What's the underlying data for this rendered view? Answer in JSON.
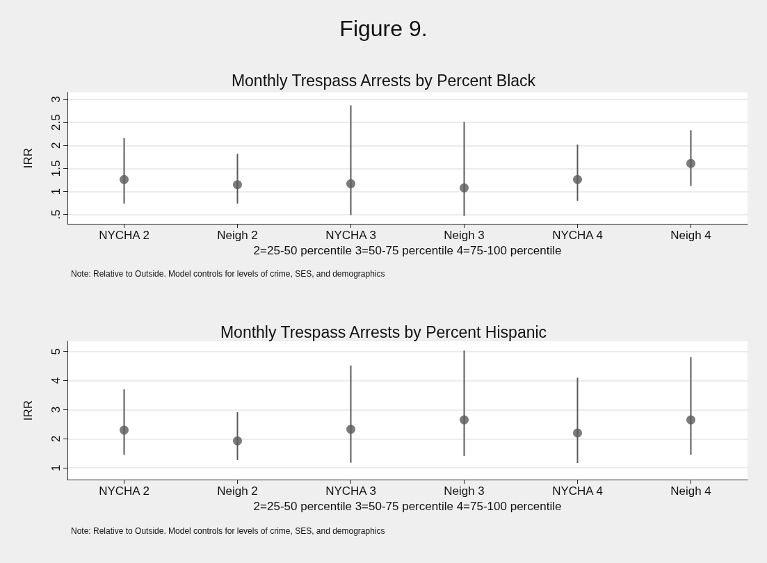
{
  "chart_data": [
    {
      "type": "scatter",
      "title": "Figure 9.",
      "subtitle": "Monthly Trespass Arrests by Percent Black",
      "ylabel": "IRR",
      "xlabel": "2=25-50 percentile 3=50-75 percentile 4=75-100 percentile",
      "categories": [
        "NYCHA 2",
        "Neigh 2",
        "NYCHA 3",
        "Neigh 3",
        "NYCHA 4",
        "Neigh 4"
      ],
      "series": [
        {
          "color": "#5a5a5a",
          "values": [
            1.26,
            1.15,
            1.17,
            1.08,
            1.26,
            1.61
          ],
          "errors": [
            [
              0.74,
              2.16
            ],
            [
              0.74,
              1.82
            ],
            [
              0.49,
              2.87
            ],
            [
              0.47,
              2.51
            ],
            [
              0.8,
              2.02
            ],
            [
              1.12,
              2.33
            ]
          ]
        }
      ],
      "ylim": [
        0.3,
        3.15
      ],
      "yticks": [
        {
          "value": 0.5,
          "label": ".5"
        },
        1,
        1.5,
        2,
        2.5,
        3
      ],
      "grid": "y",
      "marker": "circle",
      "annotations": [
        "Note: Relative to Outside. Model controls for levels of crime, SES, and demographics"
      ]
    },
    {
      "type": "scatter",
      "title": "Monthly Trespass Arrests by Percent Hispanic",
      "ylabel": "IRR",
      "xlabel": "2=25-50 percentile 3=50-75 percentile 4=75-100 percentile",
      "categories": [
        "NYCHA 2",
        "Neigh 2",
        "NYCHA 3",
        "Neigh 3",
        "NYCHA 4",
        "Neigh 4"
      ],
      "series": [
        {
          "color": "#5a5a5a",
          "values": [
            2.3,
            1.93,
            2.33,
            2.65,
            2.2,
            2.65
          ],
          "errors": [
            [
              1.45,
              3.7
            ],
            [
              1.27,
              2.92
            ],
            [
              1.18,
              4.52
            ],
            [
              1.41,
              5.03
            ],
            [
              1.17,
              4.1
            ],
            [
              1.45,
              4.8
            ]
          ]
        }
      ],
      "ylim": [
        0.6,
        5.35
      ],
      "yticks": [
        1,
        2,
        3,
        4,
        5
      ],
      "grid": "y",
      "marker": "circle",
      "annotations": [
        "Note: Relative to Outside. Model controls for levels of crime, SES, and demographics"
      ]
    }
  ]
}
